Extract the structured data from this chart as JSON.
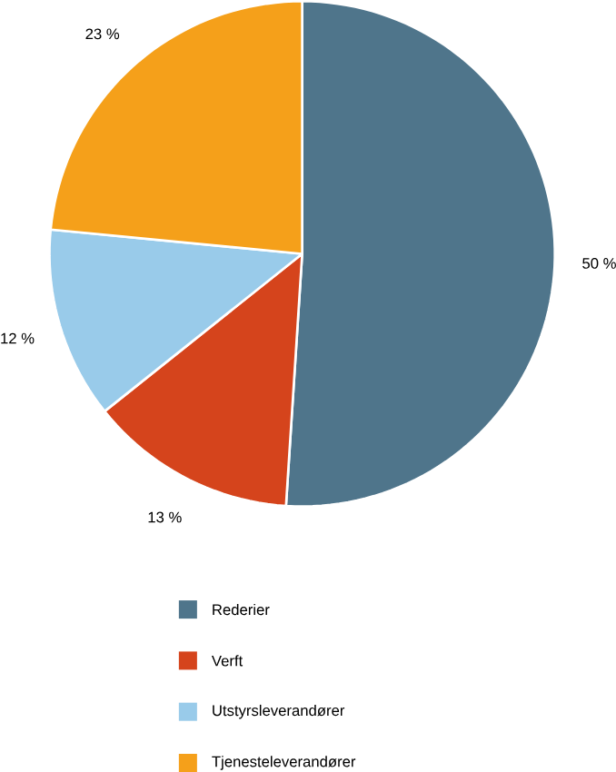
{
  "chart_data": {
    "type": "pie",
    "categories": [
      "Rederier",
      "Verft",
      "Utstyrsleverandører",
      "Tjenesteleverandører"
    ],
    "values": [
      50,
      13,
      12,
      23
    ],
    "value_labels": [
      "50 %",
      "13 %",
      "12 %",
      "23 %"
    ],
    "colors": [
      "#4f758b",
      "#d5441c",
      "#99cbea",
      "#f5a01a"
    ],
    "legend": "bottom"
  }
}
